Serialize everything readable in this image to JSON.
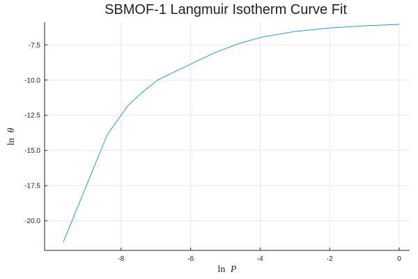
{
  "chart_data": {
    "type": "line",
    "title": "SBMOF-1 Langmuir Isotherm Curve Fit",
    "xlabel": {
      "text": "ln",
      "var": "P"
    },
    "ylabel": {
      "text": "ln",
      "var": "θ"
    },
    "xlim": [
      -10.2,
      0.3
    ],
    "ylim": [
      -22.1,
      -5.9
    ],
    "xticks": [
      -8,
      -6,
      -4,
      -2,
      0
    ],
    "xtick_labels": [
      "-8",
      "-6",
      "-4",
      "-2",
      "0"
    ],
    "yticks": [
      -7.5,
      -10.0,
      -12.5,
      -15.0,
      -17.5,
      -20.0
    ],
    "ytick_labels": [
      "-7.5",
      "-10.0",
      "-12.5",
      "-15.0",
      "-17.5",
      "-20.0"
    ],
    "grid": true,
    "legend": "none",
    "series": [
      {
        "color": "#1a9fe0",
        "x": [
          -9.66,
          -8.4,
          -7.8,
          -7.4,
          -6.95,
          -6.45,
          -5.9,
          -5.3,
          -4.6,
          -3.95,
          -3.0,
          -2.0,
          -1.0,
          0.0
        ],
        "y": [
          -21.5,
          -13.9,
          -11.8,
          -10.9,
          -10.0,
          -9.4,
          -8.75,
          -8.05,
          -7.4,
          -6.95,
          -6.55,
          -6.3,
          -6.15,
          -6.05
        ]
      }
    ]
  }
}
